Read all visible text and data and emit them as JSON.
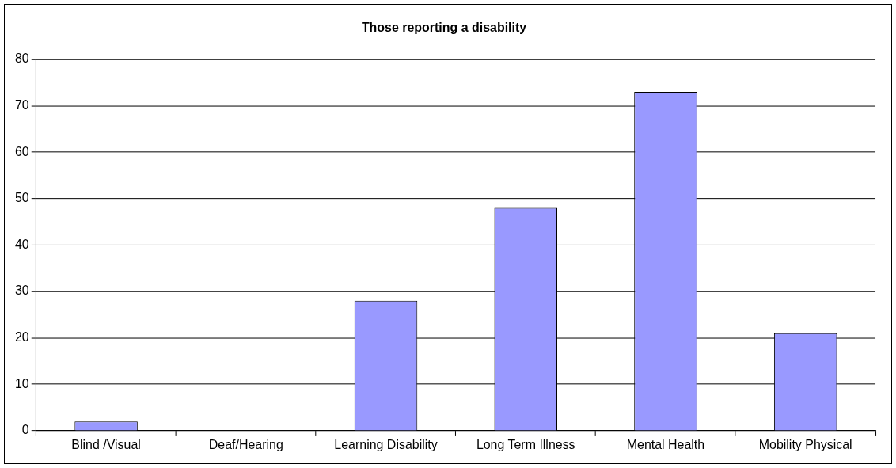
{
  "chart_data": {
    "type": "bar",
    "title": "Those reporting a disability",
    "categories": [
      "Blind /Visual",
      "Deaf/Hearing",
      "Learning Disability",
      "Long Term Illness",
      "Mental Health",
      "Mobility Physical"
    ],
    "values": [
      2,
      0,
      28,
      48,
      73,
      21
    ],
    "color": "#9999ff",
    "ylim": [
      0,
      80
    ],
    "yticks": [
      0,
      10,
      20,
      30,
      40,
      50,
      60,
      70,
      80
    ],
    "grid": "y",
    "legend": false
  }
}
